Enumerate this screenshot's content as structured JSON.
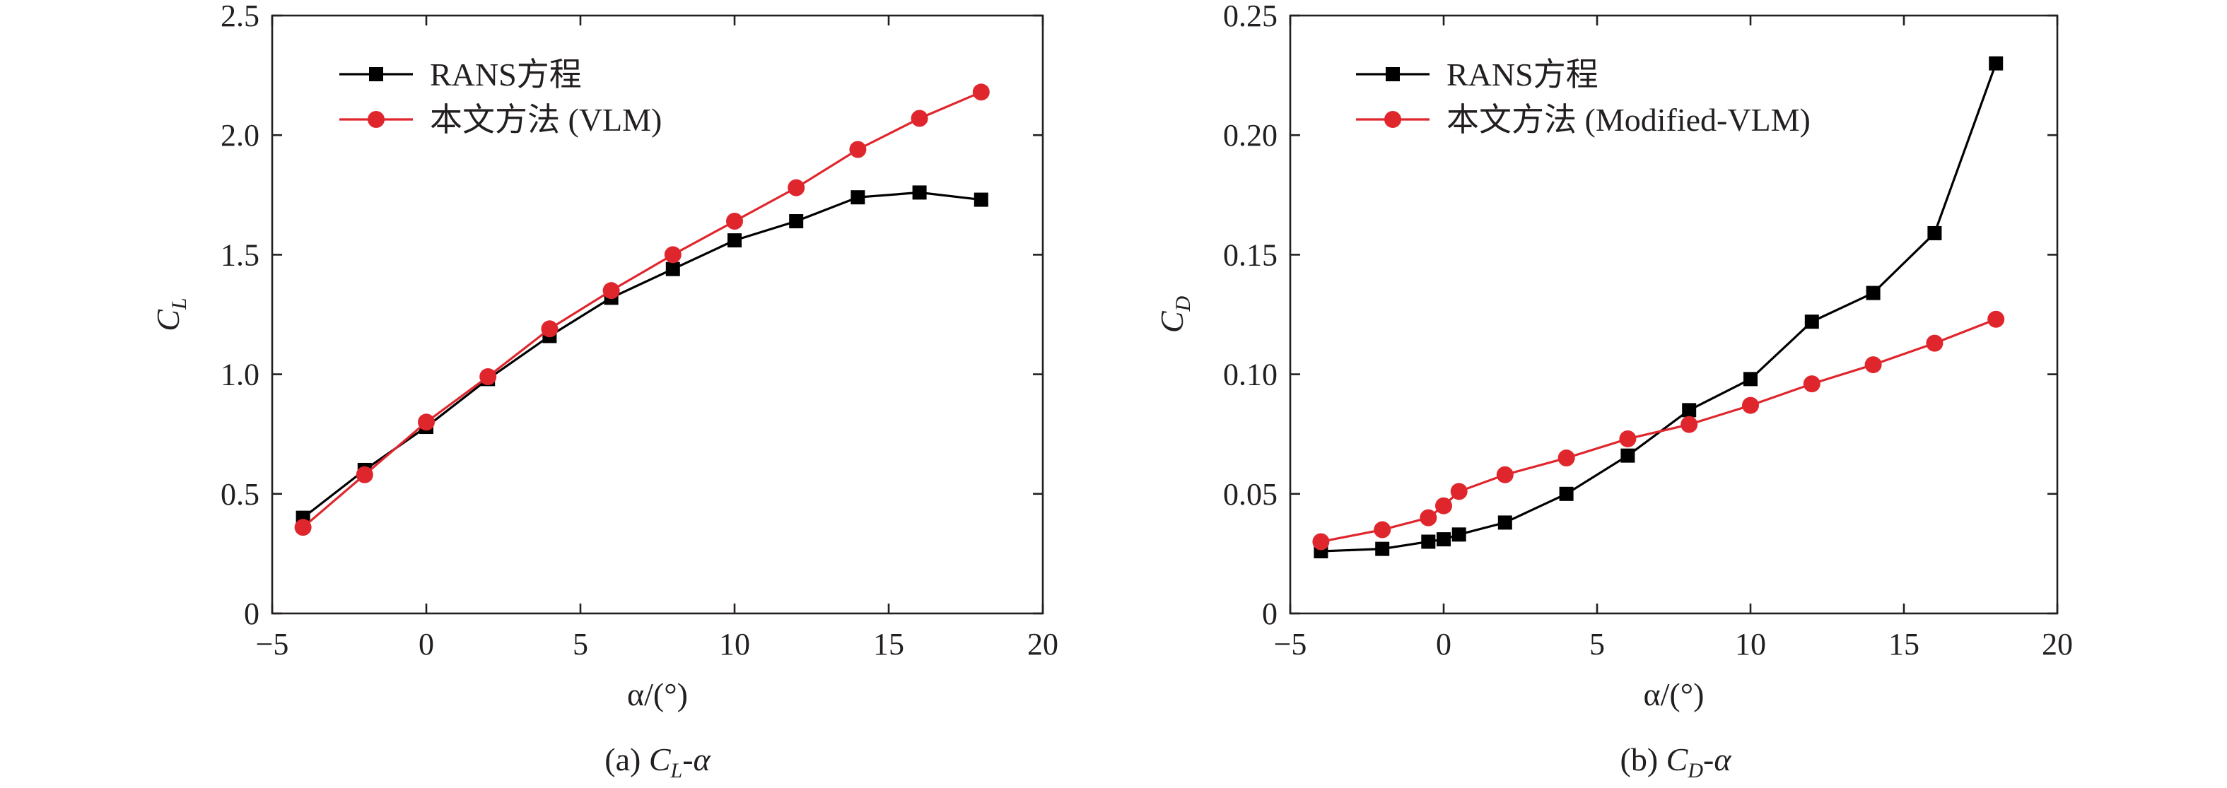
{
  "colors": {
    "rans": "#000000",
    "vlm": "#e0262d",
    "axis": "#231f20"
  },
  "chart_data": [
    {
      "type": "line",
      "id": "cl",
      "title": "",
      "xlabel": "α/(°)",
      "ylabel": {
        "main": "C",
        "sub": "L"
      },
      "caption": {
        "prefix": "(a) ",
        "var": "C",
        "sub": "L",
        "suffix": "-α"
      },
      "xlim": [
        -5,
        20
      ],
      "ylim": [
        0,
        2.5
      ],
      "xticks": [
        -5,
        0,
        5,
        10,
        15,
        20
      ],
      "xtick_labels": [
        "−5",
        "0",
        "5",
        "10",
        "15",
        "20"
      ],
      "yticks": [
        0,
        0.5,
        1.0,
        1.5,
        2.0,
        2.5
      ],
      "ytick_labels": [
        "0",
        "0.5",
        "1.0",
        "1.5",
        "2.0",
        "2.5"
      ],
      "legend_position": "top-left",
      "series": [
        {
          "name": "RANS方程",
          "marker": "square",
          "color": "#000000",
          "x": [
            -4,
            -2,
            0,
            2,
            4,
            6,
            8,
            10,
            12,
            14,
            16,
            18
          ],
          "y": [
            0.4,
            0.6,
            0.78,
            0.98,
            1.16,
            1.32,
            1.44,
            1.56,
            1.64,
            1.74,
            1.76,
            1.73
          ]
        },
        {
          "name": "本文方法 (VLM)",
          "marker": "circle",
          "color": "#e0262d",
          "x": [
            -4,
            -2,
            0,
            2,
            4,
            6,
            8,
            10,
            12,
            14,
            16,
            18
          ],
          "y": [
            0.36,
            0.58,
            0.8,
            0.99,
            1.19,
            1.35,
            1.5,
            1.64,
            1.78,
            1.94,
            2.07,
            2.18
          ]
        }
      ]
    },
    {
      "type": "line",
      "id": "cd",
      "title": "",
      "xlabel": "α/(°)",
      "ylabel": {
        "main": "C",
        "sub": "D"
      },
      "caption": {
        "prefix": "(b) ",
        "var": "C",
        "sub": "D",
        "suffix": "-α"
      },
      "xlim": [
        -5,
        20
      ],
      "ylim": [
        0,
        0.25
      ],
      "xticks": [
        -5,
        0,
        5,
        10,
        15,
        20
      ],
      "xtick_labels": [
        "−5",
        "0",
        "5",
        "10",
        "15",
        "20"
      ],
      "yticks": [
        0,
        0.05,
        0.1,
        0.15,
        0.2,
        0.25
      ],
      "ytick_labels": [
        "0",
        "0.05",
        "0.10",
        "0.15",
        "0.20",
        "0.25"
      ],
      "legend_position": "top-left",
      "series": [
        {
          "name": "RANS方程",
          "marker": "square",
          "color": "#000000",
          "x": [
            -4,
            -2,
            -0.5,
            0,
            0.5,
            2,
            4,
            6,
            8,
            10,
            12,
            14,
            16,
            18
          ],
          "y": [
            0.026,
            0.027,
            0.03,
            0.031,
            0.033,
            0.038,
            0.05,
            0.066,
            0.085,
            0.098,
            0.122,
            0.134,
            0.159,
            0.23
          ]
        },
        {
          "name": "本文方法 (Modified-VLM)",
          "marker": "circle",
          "color": "#e0262d",
          "x": [
            -4,
            -2,
            -0.5,
            0,
            0.5,
            2,
            4,
            6,
            8,
            10,
            12,
            14,
            16,
            18
          ],
          "y": [
            0.03,
            0.035,
            0.04,
            0.045,
            0.051,
            0.058,
            0.065,
            0.073,
            0.079,
            0.087,
            0.096,
            0.104,
            0.113,
            0.123
          ]
        }
      ]
    }
  ]
}
